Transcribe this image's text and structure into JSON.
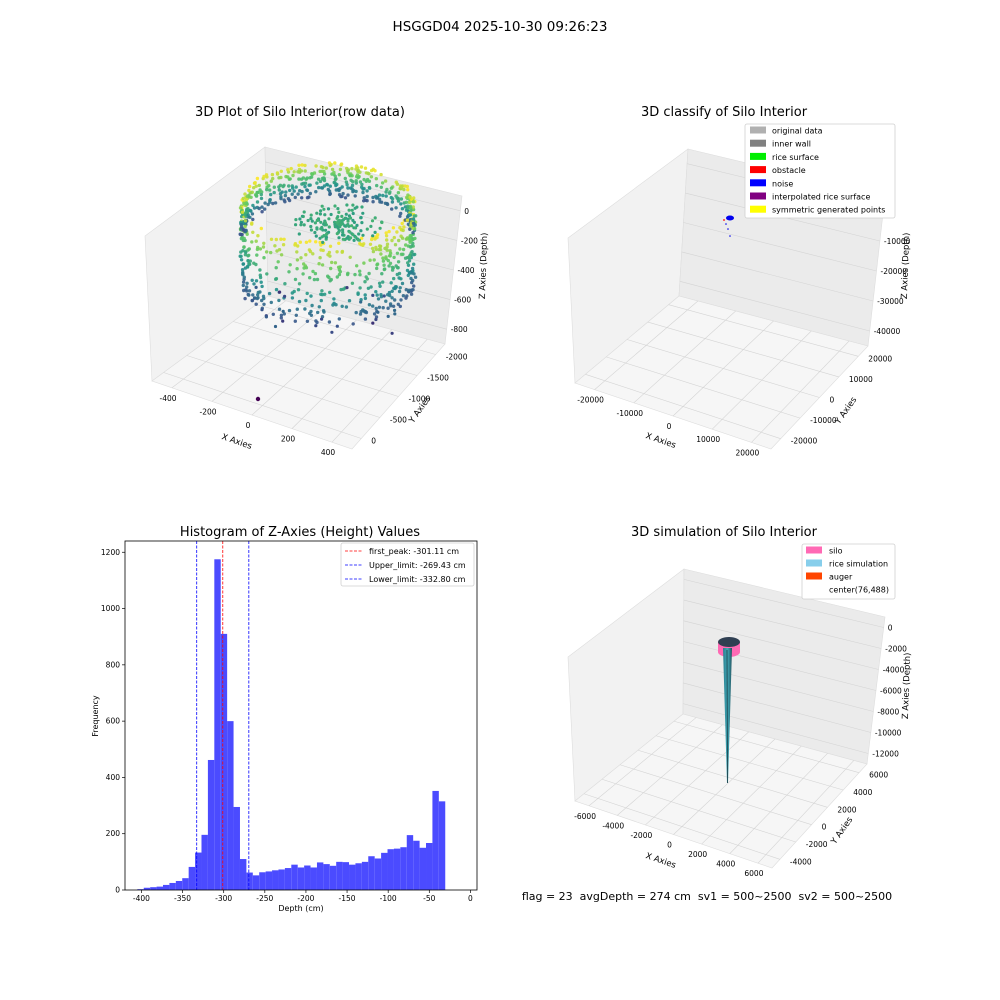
{
  "suptitle": "HSGGD04 2025-10-30 09:26:23",
  "chart_data": [
    {
      "type": "scatter3d",
      "title": "3D Plot of Silo Interior(row data)",
      "xlabel": "X Axies",
      "ylabel": "Y Axies",
      "zlabel": "Z Axies (Depth)",
      "x_ticks": [
        "-400",
        "-200",
        "0",
        "200",
        "400"
      ],
      "y_ticks": [
        "0",
        "-500",
        "-1000",
        "-1500",
        "-2000"
      ],
      "z_ticks": [
        "0",
        "-200",
        "-400",
        "-600",
        "-800"
      ],
      "colormap": "viridis"
    },
    {
      "type": "scatter3d",
      "title": "3D classify of Silo Interior",
      "xlabel": "X Axies",
      "ylabel": "Y Axies",
      "zlabel": "Z Axies (Depth)",
      "x_ticks": [
        "-20000",
        "-10000",
        "0",
        "10000",
        "20000"
      ],
      "y_ticks": [
        "20000",
        "10000",
        "0",
        "-10000",
        "-20000"
      ],
      "z_ticks": [
        "0",
        "-10000",
        "-20000",
        "-30000",
        "-40000"
      ],
      "legend_position": "top-right",
      "legend": [
        {
          "label": "original data",
          "color": "#b0b0b0"
        },
        {
          "label": "inner wall",
          "color": "#808080"
        },
        {
          "label": "rice surface",
          "color": "#00ee00"
        },
        {
          "label": "obstacle",
          "color": "#ff0000"
        },
        {
          "label": "noise",
          "color": "#0000ff"
        },
        {
          "label": "interpolated rice surface",
          "color": "#800080"
        },
        {
          "label": "symmetric generated points",
          "color": "#ffff00"
        }
      ]
    },
    {
      "type": "bar",
      "title": "Histogram of Z-Axies (Height) Values",
      "xlabel": "Depth (cm)",
      "ylabel": "Frequency",
      "xlim": [
        -420,
        8
      ],
      "ylim": [
        0,
        1240
      ],
      "x_ticks": [
        -400,
        -350,
        -300,
        -250,
        -200,
        -150,
        -100,
        -50,
        0
      ],
      "y_ticks": [
        0,
        200,
        400,
        600,
        800,
        1000,
        1200
      ],
      "bar_color": "#4b4bff",
      "bin_width": 7.8,
      "bin_starts": [
        -405,
        -397.2,
        -389.4,
        -381.6,
        -373.8,
        -366,
        -358.2,
        -350.4,
        -342.6,
        -334.8,
        -327,
        -319.2,
        -311.4,
        -303.6,
        -295.8,
        -288,
        -280.2,
        -272.4,
        -264.6,
        -256.8,
        -249,
        -241.2,
        -233.4,
        -225.6,
        -217.8,
        -210,
        -202.2,
        -194.4,
        -186.6,
        -178.8,
        -171,
        -163.2,
        -155.4,
        -147.6,
        -139.8,
        -132,
        -124.2,
        -116.4,
        -108.6,
        -100.8,
        -93,
        -85.2,
        -77.4,
        -69.6,
        -61.8,
        -54,
        -46.2,
        -38.4,
        -30.6,
        -22.8,
        -15
      ],
      "values": [
        3,
        8,
        10,
        12,
        18,
        25,
        32,
        42,
        82,
        133,
        196,
        462,
        1175,
        910,
        600,
        295,
        110,
        62,
        52,
        63,
        66,
        70,
        73,
        78,
        90,
        80,
        87,
        80,
        98,
        92,
        86,
        100,
        99,
        90,
        95,
        100,
        120,
        112,
        132,
        145,
        147,
        152,
        195,
        175,
        150,
        167,
        352,
        315,
        0,
        0,
        0
      ],
      "lines": [
        {
          "value": -301.11,
          "color": "#ff0000",
          "label": "first_peak: -301.11 cm"
        },
        {
          "value": -269.43,
          "color": "#0000ff",
          "label": "Upper_limit: -269.43 cm"
        },
        {
          "value": -332.8,
          "color": "#0000ff",
          "label": "Lower_limit: -332.80 cm"
        }
      ],
      "legend_position": "top-right"
    },
    {
      "type": "surface3d",
      "title": "3D simulation of Silo Interior",
      "xlabel": "X Axies",
      "ylabel": "Y Axies",
      "zlabel": "Z Axies (Depth)",
      "x_ticks": [
        "-6000",
        "-4000",
        "-2000",
        "0",
        "2000",
        "4000",
        "6000"
      ],
      "y_ticks": [
        "6000",
        "4000",
        "2000",
        "0",
        "-2000",
        "-4000"
      ],
      "z_ticks": [
        "0",
        "-2000",
        "-4000",
        "-6000",
        "-8000",
        "-10000",
        "-12000"
      ],
      "legend_position": "top-right",
      "legend": [
        {
          "label": "silo",
          "color": "#ff69b4"
        },
        {
          "label": "rice simulation",
          "color": "#87ceeb"
        },
        {
          "label": "auger",
          "color": "#ff4500"
        },
        {
          "label": "center(76,488)",
          "color": ""
        }
      ]
    }
  ],
  "footer": {
    "status": "flag = 23  avgDepth = 274 cm  sv1 = 500~2500  sv2 = 500~2500"
  }
}
